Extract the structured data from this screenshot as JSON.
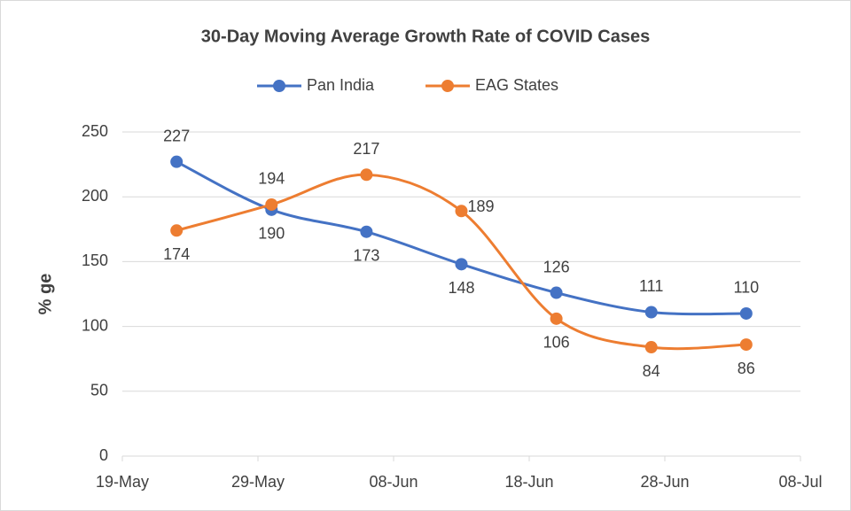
{
  "chart_data": {
    "type": "line",
    "title": "30-Day Moving Average Growth Rate of COVID Cases",
    "y_label": "% ge",
    "x": [
      "23-May",
      "30-May",
      "06-Jun",
      "13-Jun",
      "20-Jun",
      "27-Jun",
      "04-Jul"
    ],
    "series": [
      {
        "name": "Pan India",
        "color": "#4472c4",
        "values": [
          227,
          190,
          173,
          148,
          126,
          111,
          110
        ]
      },
      {
        "name": "EAG States",
        "color": "#ed7d31",
        "values": [
          174,
          194,
          217,
          189,
          106,
          84,
          86
        ]
      }
    ],
    "xlim": [
      "19-May",
      "08-Jul"
    ],
    "xticks": [
      "19-May",
      "29-May",
      "08-Jun",
      "18-Jun",
      "28-Jun",
      "08-Jul"
    ],
    "ylim": [
      0,
      250
    ],
    "yticks": [
      0,
      50,
      100,
      150,
      200,
      250
    ],
    "grid": true,
    "legend": "top",
    "smooth": true
  }
}
